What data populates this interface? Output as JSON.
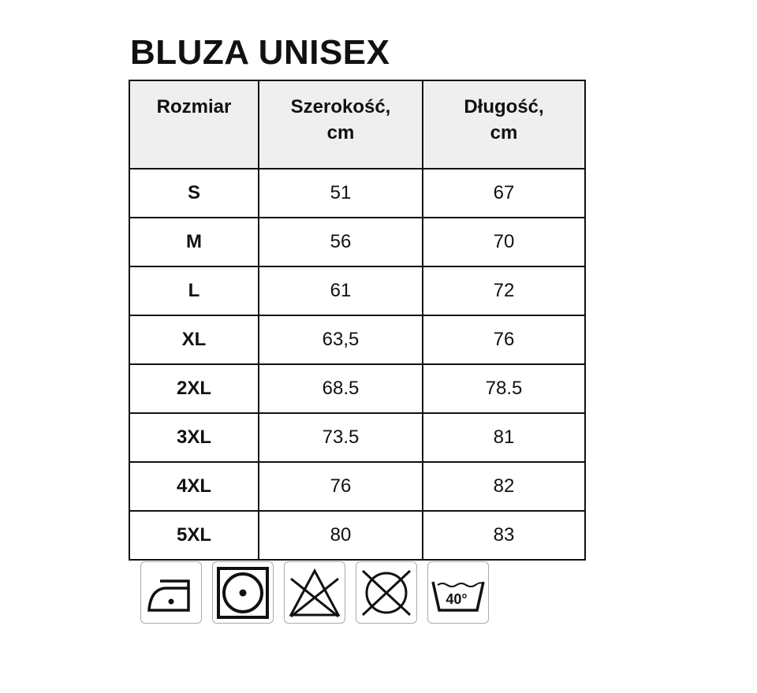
{
  "title": "BLUZA UNISEX",
  "table": {
    "headers": [
      [
        "Rozmiar"
      ],
      [
        "Szerokość,",
        "cm"
      ],
      [
        "Długość,",
        "cm"
      ]
    ],
    "rows": [
      [
        "S",
        "51",
        "67"
      ],
      [
        "M",
        "56",
        "70"
      ],
      [
        "L",
        "61",
        "72"
      ],
      [
        "XL",
        "63,5",
        "76"
      ],
      [
        "2XL",
        "68.5",
        "78.5"
      ],
      [
        "3XL",
        "73.5",
        "81"
      ],
      [
        "4XL",
        "76",
        "82"
      ],
      [
        "5XL",
        "80",
        "83"
      ]
    ]
  },
  "care_icons": [
    {
      "name": "iron-low-heat-icon"
    },
    {
      "name": "tumble-dry-medium-icon"
    },
    {
      "name": "do-not-bleach-icon"
    },
    {
      "name": "do-not-dry-clean-icon"
    },
    {
      "name": "wash-40-icon",
      "label": "40°"
    }
  ]
}
